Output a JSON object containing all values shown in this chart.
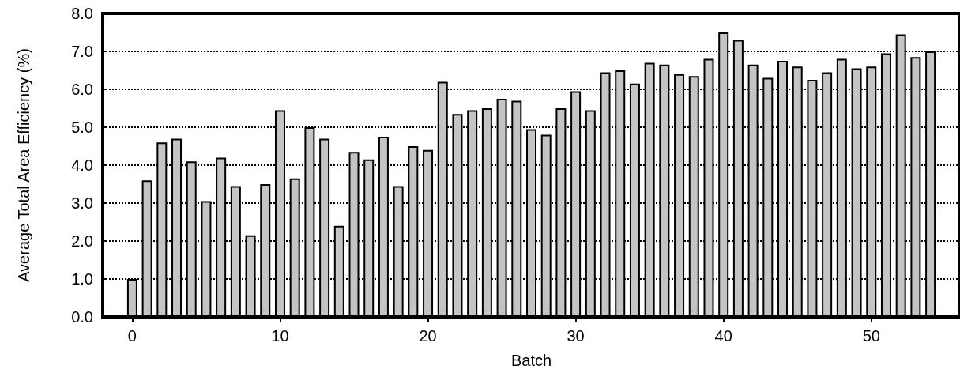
{
  "chart_data": {
    "type": "bar",
    "xlabel": "Batch",
    "ylabel": "Average Total Area Efficiency (%)",
    "x": [
      0,
      1,
      2,
      3,
      4,
      5,
      6,
      7,
      8,
      9,
      10,
      11,
      12,
      13,
      14,
      15,
      16,
      17,
      18,
      19,
      20,
      21,
      22,
      23,
      24,
      25,
      26,
      27,
      28,
      29,
      30,
      31,
      32,
      33,
      34,
      35,
      36,
      37,
      38,
      39,
      40,
      41,
      42,
      43,
      44,
      45,
      46,
      47,
      48,
      49,
      50,
      51,
      52,
      53,
      54
    ],
    "values": [
      1.0,
      3.6,
      4.6,
      4.7,
      4.1,
      3.05,
      4.2,
      3.45,
      2.15,
      3.5,
      5.45,
      3.65,
      5.0,
      4.7,
      2.4,
      4.35,
      4.15,
      4.75,
      3.45,
      4.5,
      4.4,
      6.2,
      5.35,
      5.45,
      5.5,
      5.75,
      5.7,
      4.95,
      4.8,
      5.5,
      5.95,
      5.45,
      6.45,
      6.5,
      6.15,
      6.7,
      6.65,
      6.4,
      6.35,
      6.8,
      7.5,
      7.3,
      6.65,
      6.3,
      6.75,
      6.6,
      6.25,
      6.45,
      6.8,
      6.55,
      6.6,
      6.95,
      7.45,
      6.85,
      7.0
    ],
    "color": "#c4c4c4",
    "xlim": [
      -2,
      56
    ],
    "xticks": [
      0,
      10,
      20,
      30,
      40,
      50
    ],
    "ylim": [
      0,
      8
    ],
    "yticks": [
      {
        "value": 0,
        "label": "0.0"
      },
      {
        "value": 1,
        "label": "1.0"
      },
      {
        "value": 2,
        "label": "2.0"
      },
      {
        "value": 3,
        "label": "3.0"
      },
      {
        "value": 4,
        "label": "4.0"
      },
      {
        "value": 5,
        "label": "5.0"
      },
      {
        "value": 6,
        "label": "6.0"
      },
      {
        "value": 7,
        "label": "7.0"
      },
      {
        "value": 8,
        "label": "8.0"
      }
    ],
    "grid": "y"
  }
}
